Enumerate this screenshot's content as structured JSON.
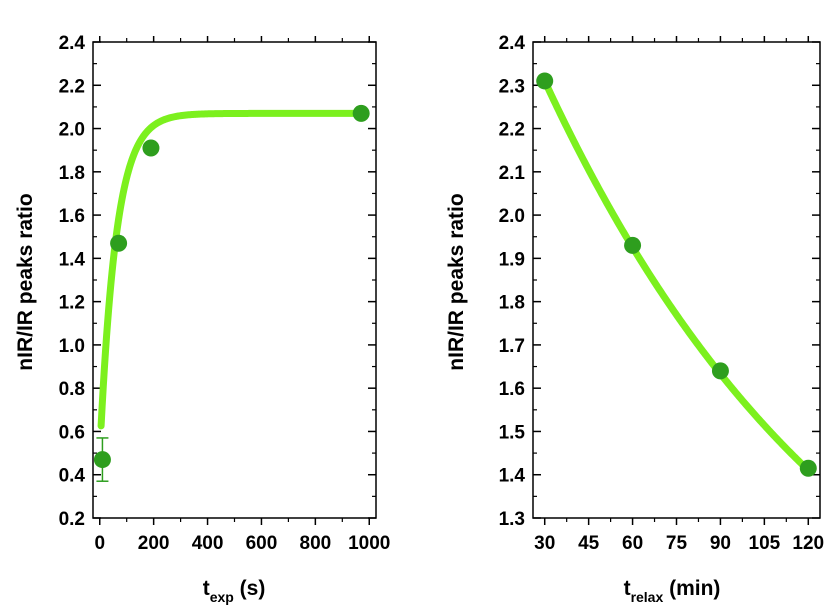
{
  "chart_data": [
    {
      "type": "scatter",
      "panel": "left",
      "ylabel": "nIR/IR peaks ratio",
      "xlabel": {
        "main": "t",
        "sub": "exp",
        "unit": " (s)"
      },
      "xlim": [
        -25,
        1025
      ],
      "ylim": [
        0.2,
        2.4
      ],
      "xticks": [
        0,
        200,
        400,
        600,
        800,
        1000
      ],
      "xtick_labels": [
        "0",
        "200",
        "400",
        "600",
        "800",
        "1000"
      ],
      "yticks": [
        0.2,
        0.4,
        0.6,
        0.8,
        1.0,
        1.2,
        1.4,
        1.6,
        1.8,
        2.0,
        2.2,
        2.4
      ],
      "ytick_labels": [
        "0.2",
        "0.4",
        "0.6",
        "0.8",
        "1.0",
        "1.2",
        "1.4",
        "1.6",
        "1.8",
        "2.0",
        "2.2",
        "2.4"
      ],
      "points": [
        {
          "x": 10,
          "y": 0.47,
          "err": 0.1
        },
        {
          "x": 70,
          "y": 1.47
        },
        {
          "x": 190,
          "y": 1.91
        },
        {
          "x": 970,
          "y": 2.07
        }
      ],
      "fit": {
        "model": "y0 + A*(1-exp(-x/tau))",
        "y0": 0.5,
        "A": 1.57,
        "tau": 60,
        "x_start": 5,
        "x_end": 980
      },
      "colors": {
        "marker": "#2e9e1e",
        "fit": "#7cf01e",
        "errbar": "#2e9e1e"
      }
    },
    {
      "type": "scatter",
      "panel": "right",
      "ylabel": "nIR/IR peaks ratio",
      "xlabel": {
        "main": "t",
        "sub": "relax",
        "unit": " (min)"
      },
      "xlim": [
        26,
        124
      ],
      "ylim": [
        1.3,
        2.4
      ],
      "xticks": [
        30,
        45,
        60,
        75,
        90,
        105,
        120
      ],
      "xtick_labels": [
        "30",
        "45",
        "60",
        "75",
        "90",
        "105",
        "120"
      ],
      "yticks": [
        1.3,
        1.4,
        1.5,
        1.6,
        1.7,
        1.8,
        1.9,
        2.0,
        2.1,
        2.2,
        2.3,
        2.4
      ],
      "ytick_labels": [
        "1.3",
        "1.4",
        "1.5",
        "1.6",
        "1.7",
        "1.8",
        "1.9",
        "2.0",
        "2.1",
        "2.2",
        "2.3",
        "2.4"
      ],
      "points": [
        {
          "x": 30,
          "y": 2.31
        },
        {
          "x": 60,
          "y": 1.93
        },
        {
          "x": 90,
          "y": 1.64
        },
        {
          "x": 120,
          "y": 1.415
        }
      ],
      "fit": {
        "model": "y0 + A*exp(-(x-30)/tau)",
        "y0": 0.7,
        "A": 1.61,
        "tau": 110,
        "x_start": 30,
        "x_end": 120
      },
      "colors": {
        "marker": "#2e9e1e",
        "fit": "#7cf01e"
      }
    }
  ]
}
